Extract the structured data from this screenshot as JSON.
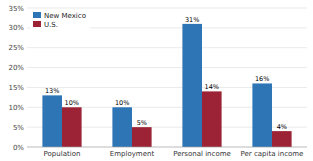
{
  "chart_data": {
    "type": "bar",
    "categories": [
      "Population",
      "Employment",
      "Personal income",
      "Per capita income"
    ],
    "series": [
      {
        "name": "New Mexico",
        "color": "#2E75B6",
        "values": [
          13,
          10,
          31,
          16
        ],
        "value_labels": [
          "13%",
          "10%",
          "31%",
          "16%"
        ]
      },
      {
        "name": "U.S.",
        "color": "#9B2335",
        "values": [
          10,
          5,
          14,
          4
        ],
        "value_labels": [
          "10%",
          "5%",
          "14%",
          "4%"
        ]
      }
    ],
    "ylim": [
      0,
      35
    ],
    "yticks": [
      {
        "value": 0,
        "label": "0%"
      },
      {
        "value": 5,
        "label": "5%"
      },
      {
        "value": 10,
        "label": "10%"
      },
      {
        "value": 15,
        "label": "15%"
      },
      {
        "value": 20,
        "label": "20%"
      },
      {
        "value": 25,
        "label": "25%"
      },
      {
        "value": 30,
        "label": "30%"
      },
      {
        "value": 35,
        "label": "35%"
      }
    ],
    "grid": true,
    "legend": "upper left",
    "data_labels": true
  }
}
